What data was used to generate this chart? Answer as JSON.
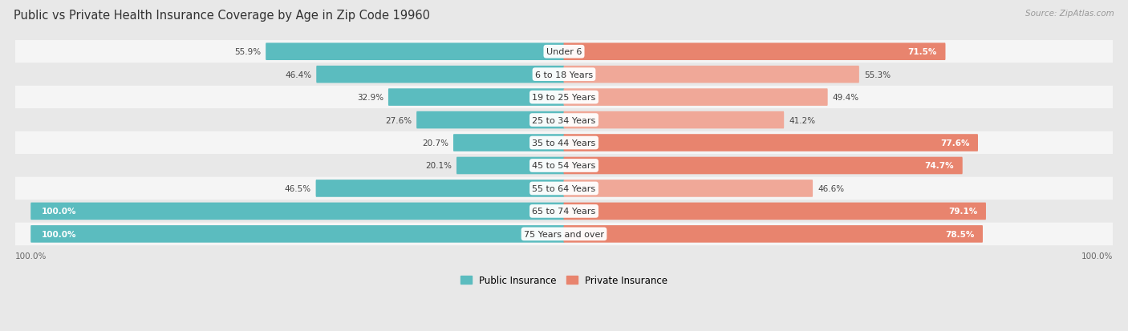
{
  "title": "Public vs Private Health Insurance Coverage by Age in Zip Code 19960",
  "source": "Source: ZipAtlas.com",
  "categories": [
    "Under 6",
    "6 to 18 Years",
    "19 to 25 Years",
    "25 to 34 Years",
    "35 to 44 Years",
    "45 to 54 Years",
    "55 to 64 Years",
    "65 to 74 Years",
    "75 Years and over"
  ],
  "public_values": [
    55.9,
    46.4,
    32.9,
    27.6,
    20.7,
    20.1,
    46.5,
    100.0,
    100.0
  ],
  "private_values": [
    71.5,
    55.3,
    49.4,
    41.2,
    77.6,
    74.7,
    46.6,
    79.1,
    78.5
  ],
  "public_color": "#5bbcbf",
  "private_color": "#e8846e",
  "private_color_light": "#f0a898",
  "public_label": "Public Insurance",
  "private_label": "Private Insurance",
  "background_color": "#e8e8e8",
  "row_bg_odd": "#f5f5f5",
  "row_bg_even": "#e8e8e8",
  "title_fontsize": 10.5,
  "source_fontsize": 7.5,
  "label_fontsize": 8,
  "value_fontsize": 7.5
}
